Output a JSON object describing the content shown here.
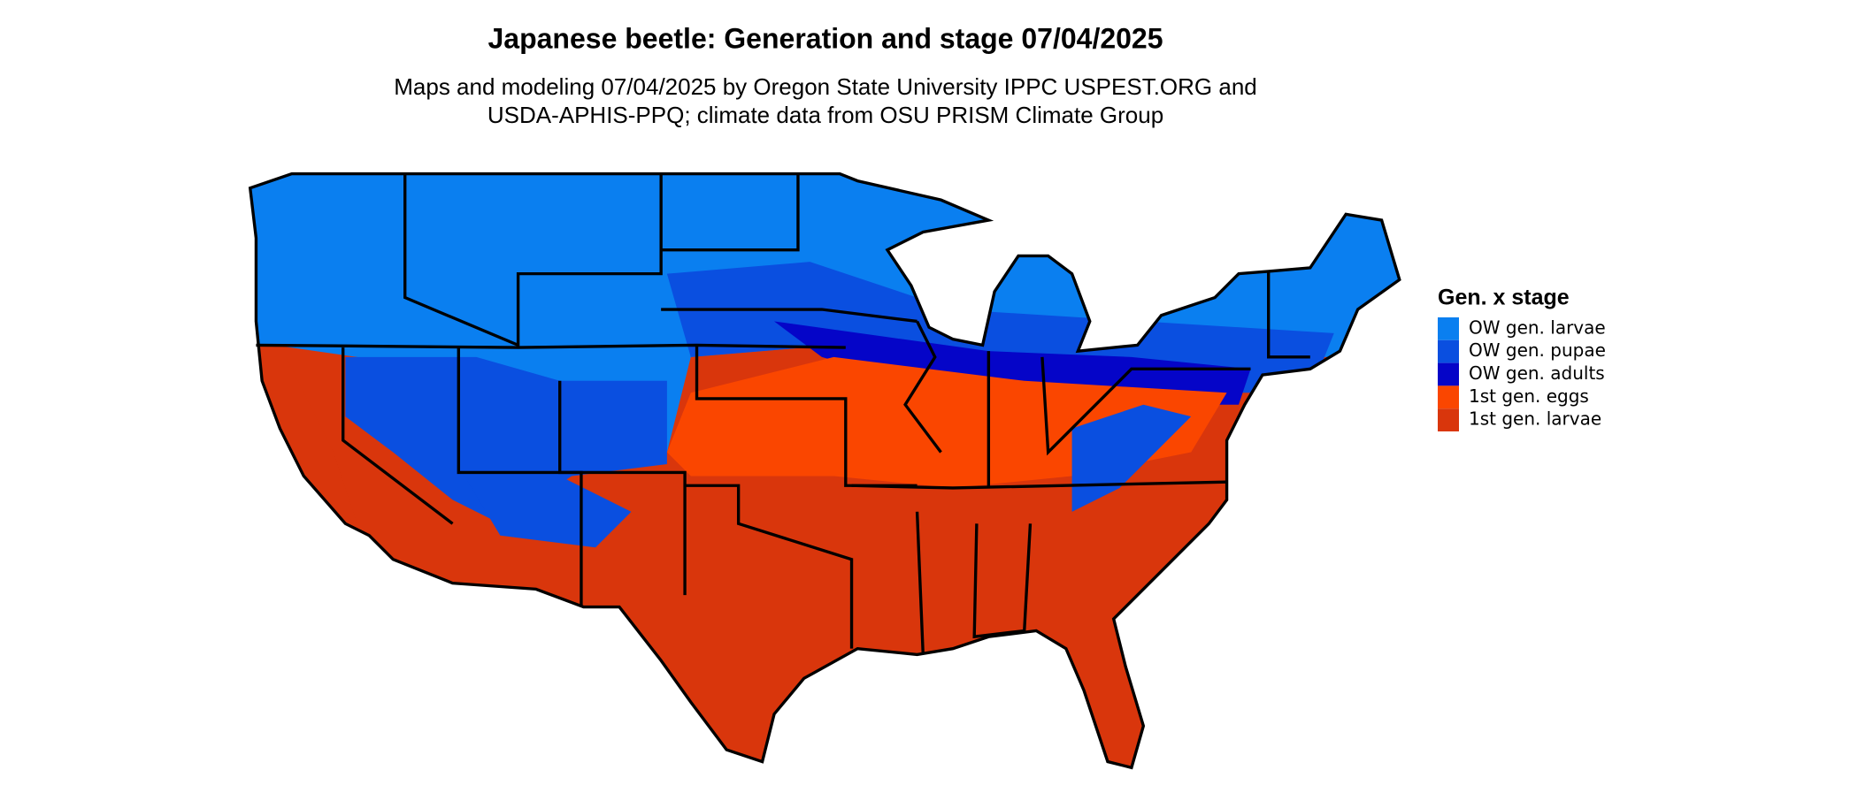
{
  "title": "Japanese beetle: Generation and stage 07/04/2025",
  "subtitle": [
    "Maps and modeling 07/04/2025 by Oregon State University IPPC USPEST.ORG and",
    "USDA-APHIS-PPQ; climate data from OSU PRISM Climate Group"
  ],
  "legend": {
    "title": "Gen. x stage",
    "items": [
      {
        "label": "OW gen. larvae",
        "color": "#0a7ff0"
      },
      {
        "label": "OW gen. pupae",
        "color": "#0a4fe0"
      },
      {
        "label": "OW gen. adults",
        "color": "#0505c8"
      },
      {
        "label": "1st gen. eggs",
        "color": "#fa4600"
      },
      {
        "label": "1st gen. larvae",
        "color": "#d9360c"
      }
    ]
  }
}
